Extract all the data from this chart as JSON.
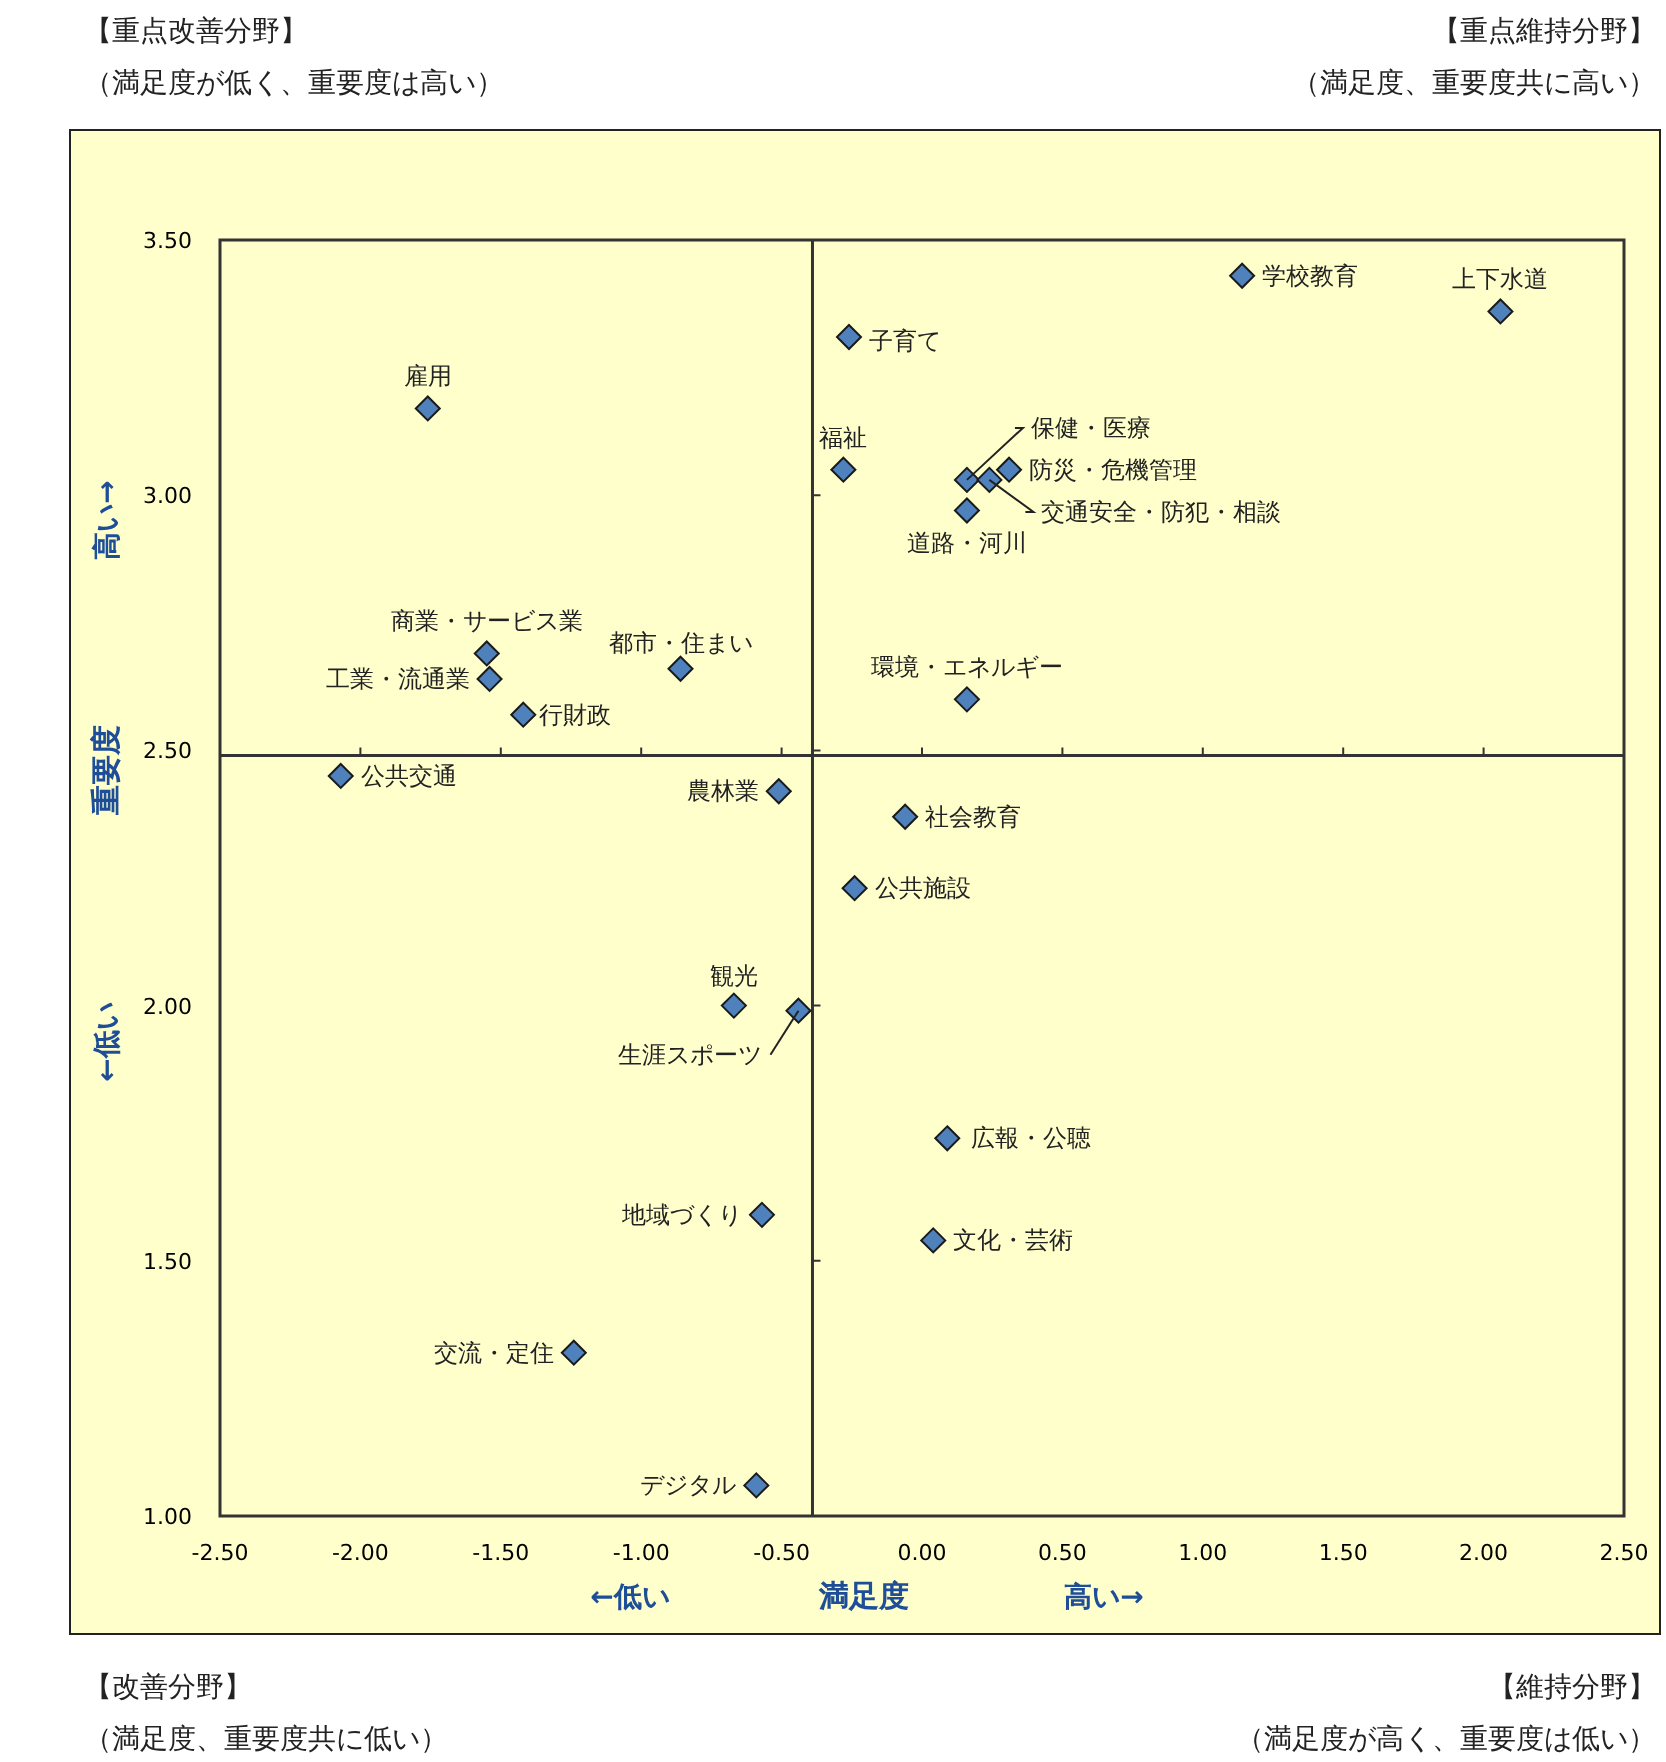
{
  "chart_data": {
    "type": "scatter",
    "xlabel": "満足度",
    "ylabel": "重要度",
    "marker": "diamond",
    "grid": false,
    "xlim": [
      -2.5,
      2.5
    ],
    "ylim": [
      1.0,
      3.5
    ],
    "xticks": [
      {
        "value": -2.5,
        "label": "-2.50"
      },
      {
        "value": -2.0,
        "label": "-2.00"
      },
      {
        "value": -1.5,
        "label": "-1.50"
      },
      {
        "value": -1.0,
        "label": "-1.00"
      },
      {
        "value": -0.5,
        "label": "-0.50"
      },
      {
        "value": 0,
        "label": "0.00"
      },
      {
        "value": 0.5,
        "label": "0.50"
      },
      {
        "value": 1.0,
        "label": "1.00"
      },
      {
        "value": 1.5,
        "label": "1.50"
      },
      {
        "value": 2.0,
        "label": "2.00"
      },
      {
        "value": 2.5,
        "label": "2.50"
      }
    ],
    "yticks": [
      {
        "value": 1.0,
        "label": "1.00"
      },
      {
        "value": 1.5,
        "label": "1.50"
      },
      {
        "value": 2.0,
        "label": "2.00"
      },
      {
        "value": 2.5,
        "label": "2.50"
      },
      {
        "value": 3.0,
        "label": "3.00"
      },
      {
        "value": 3.5,
        "label": "3.50"
      }
    ],
    "ref_lines": [
      {
        "axis": "x",
        "value": -0.39,
        "color": "#333333"
      },
      {
        "axis": "y",
        "value": 2.49,
        "color": "#333333"
      }
    ],
    "series": [
      {
        "color": "#4f81bd",
        "x": [
          1.14,
          2.06,
          -0.26,
          -0.28,
          0.16,
          0.31,
          0.24,
          0.16,
          0.16,
          -1.76,
          -1.55,
          -1.54,
          -0.86,
          -1.42,
          -2.07,
          -0.51,
          -0.06,
          -0.24,
          -0.67,
          -0.44,
          0.09,
          0.04,
          -0.57,
          -1.24,
          -0.59
        ],
        "values": [
          3.43,
          3.36,
          3.31,
          3.05,
          3.03,
          3.05,
          3.03,
          2.97,
          2.6,
          3.17,
          2.69,
          2.64,
          2.66,
          2.57,
          2.45,
          2.42,
          2.37,
          2.23,
          2.0,
          1.99,
          1.74,
          1.54,
          1.59,
          1.32,
          1.06
        ]
      }
    ],
    "annotations": [
      {
        "text": "学校教育",
        "x": 1.14,
        "y": 3.43
      },
      {
        "text": "上下水道",
        "x": 2.06,
        "y": 3.36
      },
      {
        "text": "子育て",
        "x": -0.26,
        "y": 3.31
      },
      {
        "text": "福祉",
        "x": -0.28,
        "y": 3.05
      },
      {
        "text": "保健・医療",
        "x": 0.16,
        "y": 3.03
      },
      {
        "text": "防災・危機管理",
        "x": 0.31,
        "y": 3.05
      },
      {
        "text": "交通安全・防犯・相談",
        "x": 0.24,
        "y": 3.03
      },
      {
        "text": "道路・河川",
        "x": 0.16,
        "y": 2.97
      },
      {
        "text": "環境・エネルギー",
        "x": 0.16,
        "y": 2.6
      },
      {
        "text": "雇用",
        "x": -1.76,
        "y": 3.17
      },
      {
        "text": "商業・サービス業",
        "x": -1.55,
        "y": 2.69
      },
      {
        "text": "工業・流通業",
        "x": -1.54,
        "y": 2.64
      },
      {
        "text": "都市・住まい",
        "x": -0.86,
        "y": 2.66
      },
      {
        "text": "行財政",
        "x": -1.42,
        "y": 2.57
      },
      {
        "text": "公共交通",
        "x": -2.07,
        "y": 2.45
      },
      {
        "text": "農林業",
        "x": -0.51,
        "y": 2.42
      },
      {
        "text": "社会教育",
        "x": -0.06,
        "y": 2.37
      },
      {
        "text": "公共施設",
        "x": -0.24,
        "y": 2.23
      },
      {
        "text": "観光",
        "x": -0.67,
        "y": 2.0
      },
      {
        "text": "生涯スポーツ",
        "x": -0.44,
        "y": 1.99
      },
      {
        "text": "広報・公聴",
        "x": 0.09,
        "y": 1.74
      },
      {
        "text": "文化・芸術",
        "x": 0.04,
        "y": 1.54
      },
      {
        "text": "地域づくり",
        "x": -0.57,
        "y": 1.59
      },
      {
        "text": "交流・定住",
        "x": -1.24,
        "y": 1.32
      },
      {
        "text": "デジタル",
        "x": -0.59,
        "y": 1.06
      },
      "【重点改善分野】",
      "（満足度が低く、重要度は高い）",
      "【重点維持分野】",
      "（満足度、重要度共に高い）",
      "【改善分野】",
      "（満足度、重要度共に低い）",
      "【維持分野】",
      "（満足度が高く、重要度は低い）",
      "←低い",
      "高い→",
      "高い→",
      "←低い"
    ]
  }
}
